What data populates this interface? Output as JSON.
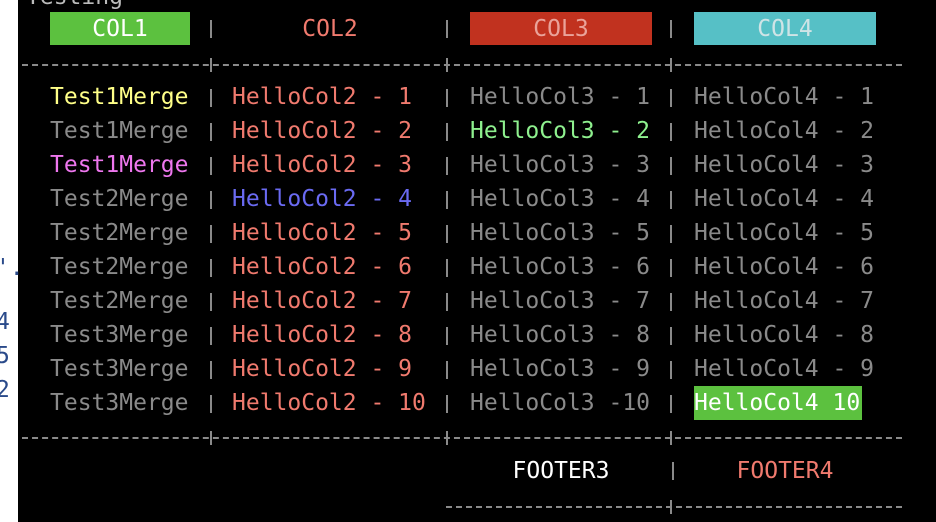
{
  "title": "Testing",
  "left_fragments": [
    "'.",
    "4",
    "5",
    "2"
  ],
  "header": [
    {
      "text": "COL1",
      "color": "#ffffff",
      "background": "#5cc13f"
    },
    {
      "text": "COL2",
      "color": "#f07a6e"
    },
    {
      "text": "COL3",
      "color": "#eaa39a",
      "background": "#c1321f"
    },
    {
      "text": "COL4",
      "color": "#cfe4e6",
      "background": "#56c0c6"
    }
  ],
  "rows": [
    [
      {
        "text": "Test1Merge",
        "color": "#ffff88"
      },
      {
        "text": "HelloCol2 - 1",
        "color": "#f07a6e"
      },
      {
        "text": "HelloCol3 - 1",
        "color": "#8a8a8a"
      },
      {
        "text": "HelloCol4 - 1",
        "color": "#8a8a8a"
      }
    ],
    [
      {
        "text": "Test1Merge",
        "color": "#8a8a8a"
      },
      {
        "text": "HelloCol2 - 2",
        "color": "#f07a6e"
      },
      {
        "text": "HelloCol3 - 2",
        "color": "#8ef08e"
      },
      {
        "text": "HelloCol4 - 2",
        "color": "#8a8a8a"
      }
    ],
    [
      {
        "text": "Test1Merge",
        "color": "#ee77ee"
      },
      {
        "text": "HelloCol2 - 3",
        "color": "#f07a6e"
      },
      {
        "text": "HelloCol3 - 3",
        "color": "#8a8a8a"
      },
      {
        "text": "HelloCol4 - 3",
        "color": "#8a8a8a"
      }
    ],
    [
      {
        "text": "Test2Merge",
        "color": "#8a8a8a"
      },
      {
        "text": "HelloCol2 - 4",
        "color": "#6a6af2"
      },
      {
        "text": "HelloCol3 - 4",
        "color": "#8a8a8a"
      },
      {
        "text": "HelloCol4 - 4",
        "color": "#8a8a8a"
      }
    ],
    [
      {
        "text": "Test2Merge",
        "color": "#8a8a8a"
      },
      {
        "text": "HelloCol2 - 5",
        "color": "#f07a6e"
      },
      {
        "text": "HelloCol3 - 5",
        "color": "#8a8a8a"
      },
      {
        "text": "HelloCol4 - 5",
        "color": "#8a8a8a"
      }
    ],
    [
      {
        "text": "Test2Merge",
        "color": "#8a8a8a"
      },
      {
        "text": "HelloCol2 - 6",
        "color": "#f07a6e"
      },
      {
        "text": "HelloCol3 - 6",
        "color": "#8a8a8a"
      },
      {
        "text": "HelloCol4 - 6",
        "color": "#8a8a8a"
      }
    ],
    [
      {
        "text": "Test2Merge",
        "color": "#8a8a8a"
      },
      {
        "text": "HelloCol2 - 7",
        "color": "#f07a6e"
      },
      {
        "text": "HelloCol3 - 7",
        "color": "#8a8a8a"
      },
      {
        "text": "HelloCol4 - 7",
        "color": "#8a8a8a"
      }
    ],
    [
      {
        "text": "Test3Merge",
        "color": "#8a8a8a"
      },
      {
        "text": "HelloCol2 - 8",
        "color": "#f07a6e"
      },
      {
        "text": "HelloCol3 - 8",
        "color": "#8a8a8a"
      },
      {
        "text": "HelloCol4 - 8",
        "color": "#8a8a8a"
      }
    ],
    [
      {
        "text": "Test3Merge",
        "color": "#8a8a8a"
      },
      {
        "text": "HelloCol2 - 9",
        "color": "#f07a6e"
      },
      {
        "text": "HelloCol3 - 9",
        "color": "#8a8a8a"
      },
      {
        "text": "HelloCol4 - 9",
        "color": "#8a8a8a"
      }
    ],
    [
      {
        "text": "Test3Merge",
        "color": "#8a8a8a"
      },
      {
        "text": "HelloCol2 - 10",
        "color": "#f07a6e"
      },
      {
        "text": "HelloCol3 -10",
        "color": "#8a8a8a"
      },
      {
        "text": "HelloCol4 10",
        "color": "#ffffff",
        "background": "#5cc13f"
      }
    ]
  ],
  "footer": [
    {
      "text": "FOOTER3",
      "color": "#ffffff"
    },
    {
      "text": "FOOTER4",
      "color": "#f07a6e"
    }
  ]
}
